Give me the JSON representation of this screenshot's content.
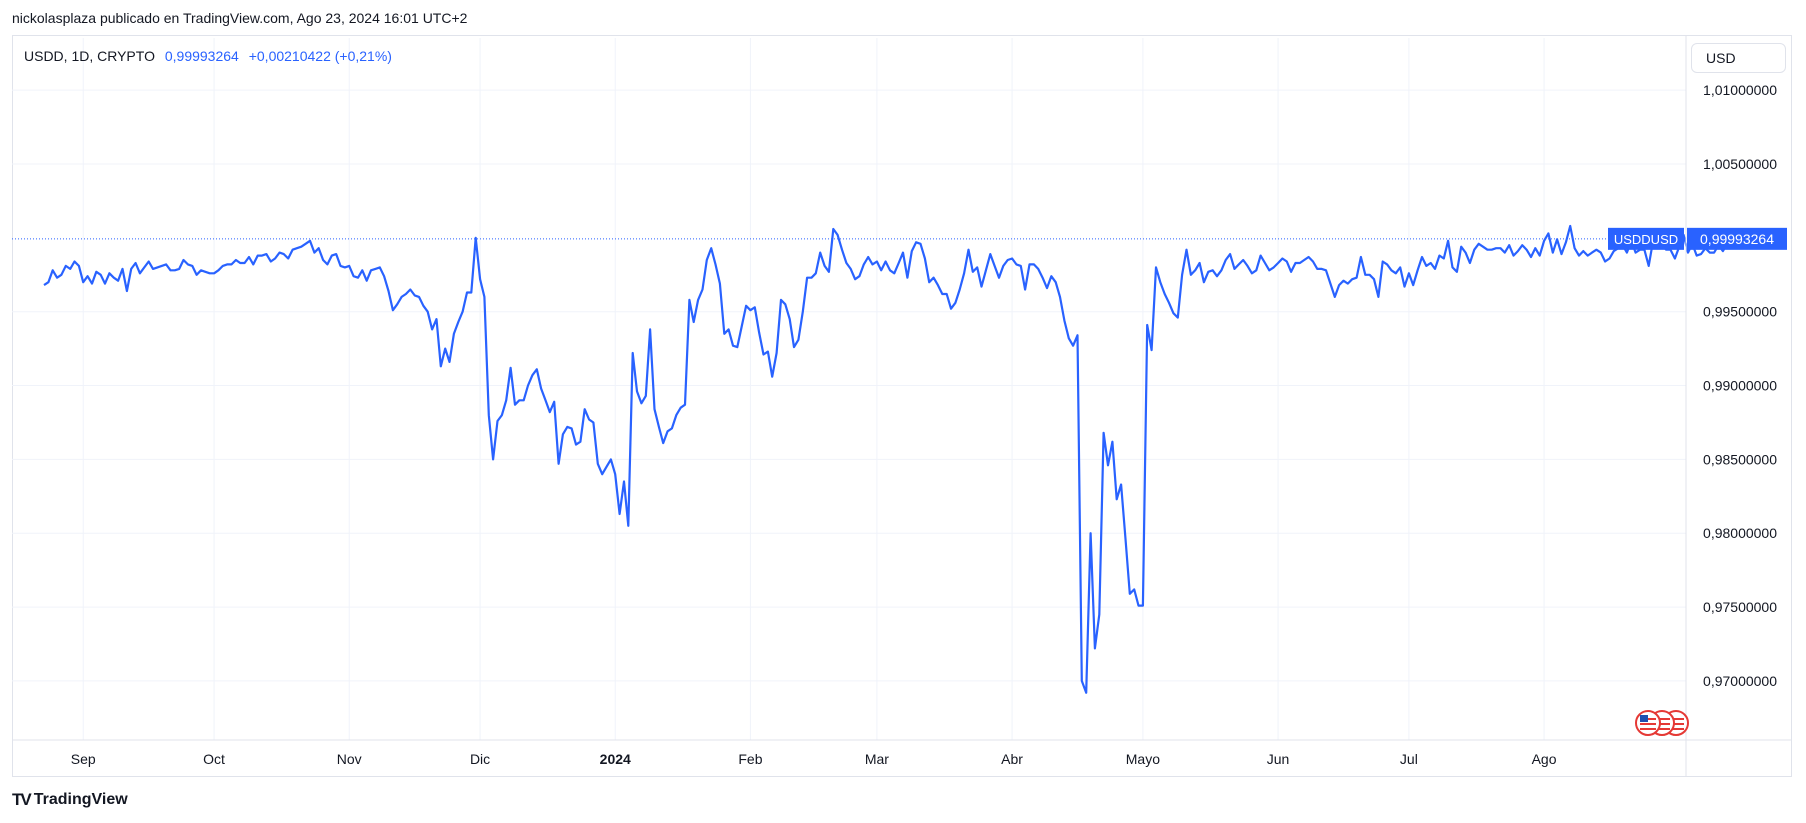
{
  "header": {
    "published_text": "nickolasplaza publicado en TradingView.com, Ago 23, 2024 16:01 UTC+2"
  },
  "legend": {
    "symbol": "USDD, 1D, CRYPTO",
    "price": "0,99993264",
    "change": "+0,00210422 (+0,21%)"
  },
  "currency_button": {
    "label": "USD"
  },
  "price_tag": {
    "symbol": "USDDUSD",
    "value": "0,99993264"
  },
  "footer": {
    "brand": "TradingView",
    "logo": "TV"
  },
  "icons": {
    "flags": "us-flag-icon"
  },
  "colors": {
    "line": "#2962ff",
    "grid": "#f0f3fa",
    "axis_text": "#131722"
  },
  "chart_data": {
    "type": "line",
    "series": [
      {
        "name": "USDDUSD",
        "start": "2023-08-23",
        "values": [
          0.9968,
          0.997,
          0.9978,
          0.9973,
          0.9975,
          0.9981,
          0.9979,
          0.9984,
          0.9981,
          0.997,
          0.9974,
          0.9969,
          0.9977,
          0.9975,
          0.9969,
          0.9976,
          0.9973,
          0.9971,
          0.9979,
          0.9964,
          0.9979,
          0.9983,
          0.9976,
          0.998,
          0.9984,
          0.9979,
          0.998,
          0.9981,
          0.9982,
          0.9978,
          0.9978,
          0.9979,
          0.9985,
          0.9982,
          0.9981,
          0.9975,
          0.9978,
          0.9977,
          0.9976,
          0.9976,
          0.9978,
          0.9981,
          0.9982,
          0.9982,
          0.9985,
          0.9983,
          0.9983,
          0.9987,
          0.9982,
          0.9988,
          0.9988,
          0.9989,
          0.9984,
          0.9986,
          0.999,
          0.9989,
          0.9986,
          0.9992,
          0.9993,
          0.9994,
          0.9996,
          0.9998,
          0.999,
          0.9993,
          0.9985,
          0.9982,
          0.9988,
          0.9989,
          0.9981,
          0.998,
          0.9981,
          0.9974,
          0.9973,
          0.9978,
          0.9971,
          0.9978,
          0.9979,
          0.998,
          0.9974,
          0.9964,
          0.9951,
          0.9955,
          0.996,
          0.9962,
          0.9965,
          0.9961,
          0.996,
          0.9954,
          0.995,
          0.9938,
          0.9945,
          0.9913,
          0.9925,
          0.9916,
          0.9935,
          0.9943,
          0.995,
          0.9963,
          0.9963,
          1.0,
          0.9972,
          0.996,
          0.988,
          0.985,
          0.9876,
          0.988,
          0.989,
          0.9912,
          0.9887,
          0.989,
          0.989,
          0.99,
          0.9907,
          0.9911,
          0.9898,
          0.989,
          0.9882,
          0.9889,
          0.9847,
          0.9867,
          0.9872,
          0.9871,
          0.986,
          0.9862,
          0.9884,
          0.9877,
          0.9875,
          0.9847,
          0.984,
          0.9845,
          0.985,
          0.984,
          0.9813,
          0.9835,
          0.9805,
          0.9922,
          0.9896,
          0.9888,
          0.9893,
          0.9938,
          0.9884,
          0.9872,
          0.9861,
          0.9869,
          0.9871,
          0.988,
          0.9885,
          0.9887,
          0.9958,
          0.9943,
          0.9958,
          0.9965,
          0.9985,
          0.9993,
          0.9982,
          0.9969,
          0.9935,
          0.9938,
          0.9927,
          0.9926,
          0.994,
          0.9954,
          0.9951,
          0.9953,
          0.9936,
          0.9921,
          0.9923,
          0.9906,
          0.9922,
          0.9958,
          0.9955,
          0.9945,
          0.9926,
          0.9931,
          0.995,
          0.9973,
          0.9973,
          0.9976,
          0.999,
          0.9981,
          0.9977,
          1.0006,
          1.0002,
          0.9992,
          0.9983,
          0.9979,
          0.9972,
          0.9974,
          0.9982,
          0.9987,
          0.9982,
          0.9984,
          0.9978,
          0.9984,
          0.9978,
          0.9976,
          0.9983,
          0.999,
          0.9973,
          0.9991,
          0.9997,
          0.9996,
          0.9986,
          0.997,
          0.9973,
          0.9968,
          0.9962,
          0.9962,
          0.9952,
          0.9956,
          0.9965,
          0.9976,
          0.9992,
          0.9977,
          0.998,
          0.9967,
          0.9978,
          0.9989,
          0.9981,
          0.9973,
          0.9981,
          0.9985,
          0.9986,
          0.9982,
          0.9981,
          0.9965,
          0.9982,
          0.9982,
          0.9979,
          0.9973,
          0.9966,
          0.9974,
          0.997,
          0.996,
          0.9944,
          0.9932,
          0.9927,
          0.9934,
          0.97,
          0.9692,
          0.98,
          0.9722,
          0.9745,
          0.9868,
          0.9846,
          0.9862,
          0.9823,
          0.9833,
          0.9797,
          0.9759,
          0.9762,
          0.9751,
          0.9751,
          0.9941,
          0.9924,
          0.998,
          0.997,
          0.9962,
          0.9956,
          0.9949,
          0.9946,
          0.9975,
          0.9992,
          0.9975,
          0.9978,
          0.9983,
          0.997,
          0.9977,
          0.9978,
          0.9974,
          0.9978,
          0.9985,
          0.9989,
          0.9979,
          0.9982,
          0.9985,
          0.9981,
          0.9976,
          0.9978,
          0.9988,
          0.9983,
          0.9978,
          0.998,
          0.9983,
          0.9986,
          0.9984,
          0.9977,
          0.9983,
          0.9983,
          0.9985,
          0.9987,
          0.9984,
          0.9979,
          0.9979,
          0.9978,
          0.9969,
          0.996,
          0.9968,
          0.9971,
          0.9969,
          0.9972,
          0.9973,
          0.9987,
          0.9975,
          0.9975,
          0.9972,
          0.996,
          0.9984,
          0.9982,
          0.9978,
          0.9976,
          0.998,
          0.9967,
          0.9976,
          0.9968,
          0.9978,
          0.9987,
          0.9981,
          0.9983,
          0.9979,
          0.9988,
          0.9986,
          0.9998,
          0.998,
          0.9977,
          0.9994,
          0.999,
          0.9983,
          0.9992,
          0.9996,
          0.9994,
          0.9992,
          0.9992,
          0.9993,
          0.9993,
          0.999,
          0.9995,
          0.9988,
          0.9991,
          0.9995,
          0.9992,
          0.9987,
          0.9993,
          0.9988,
          0.9998,
          1.0003,
          0.999,
          0.9999,
          0.9989,
          0.9997,
          1.0008,
          0.9993,
          0.9988,
          0.9991,
          0.9988,
          0.999,
          0.9992,
          0.999,
          0.9984,
          0.9986,
          0.9991,
          0.9993,
          0.9995,
          0.999,
          0.9998,
          0.999,
          0.9992,
          0.9992,
          0.9981,
          0.9998,
          0.9995,
          0.9995,
          0.9992,
          0.9992,
          0.9986,
          0.9994,
          1.0002,
          0.999,
          0.9996,
          0.9988,
          0.9989,
          0.9993,
          0.999,
          0.999,
          0.9995,
          0.9991,
          0.9996,
          0.9997,
          0.9999
        ]
      }
    ],
    "x_tick_labels": [
      "Sep",
      "Oct",
      "Nov",
      "Dic",
      "2024",
      "Feb",
      "Mar",
      "Abr",
      "Mayo",
      "Jun",
      "Jul",
      "Ago"
    ],
    "y_tick_labels": [
      "1,01000000",
      "1,00500000",
      "0,99500000",
      "0,99000000",
      "0,98500000",
      "0,98000000",
      "0,97500000",
      "0,97000000"
    ],
    "y_ticks": [
      1.01,
      1.005,
      0.995,
      0.99,
      0.985,
      0.98,
      0.975,
      0.97
    ],
    "x_tick_dates": [
      "2023-09-01",
      "2023-10-01",
      "2023-11-01",
      "2023-12-01",
      "2024-01-01",
      "2024-02-01",
      "2024-03-01",
      "2024-04-01",
      "2024-05-01",
      "2024-06-01",
      "2024-07-01",
      "2024-08-01"
    ],
    "bold_x_labels": [
      "2024"
    ],
    "ylim": [
      0.966,
      1.0115
    ],
    "xlim": [
      "2023-08-23",
      "2024-08-23"
    ],
    "last_value": 0.99993264,
    "grid": true
  }
}
